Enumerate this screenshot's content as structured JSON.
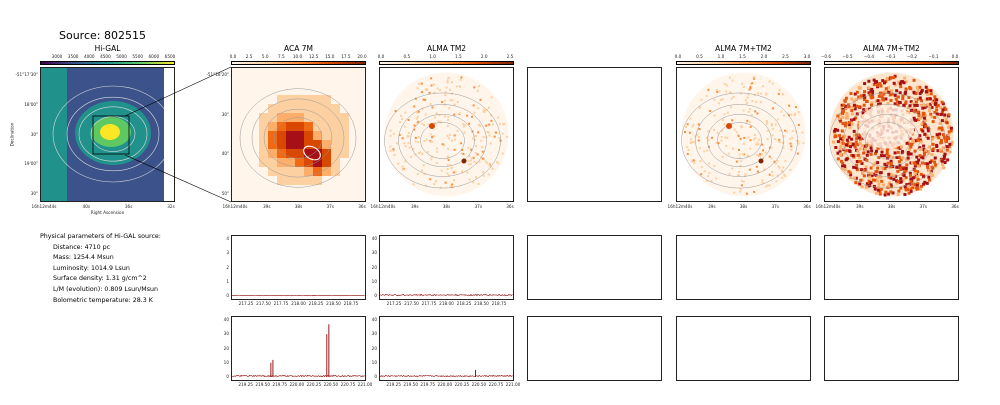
{
  "source_title": "Source: 802515",
  "colors": {
    "viridis_start": "#440154",
    "viridis_end": "#fde725",
    "orange": "#d94801",
    "spectrum": "#8b0000"
  },
  "maps": [
    {
      "id": "higal",
      "title": "Hi-GAL",
      "cb_ticks": [
        "3000",
        "3500",
        "4000",
        "4500",
        "5000",
        "5500",
        "6000",
        "6500"
      ],
      "cmap": "viridis",
      "xticks": [
        "16h12m44s",
        "40s",
        "36s",
        "32s"
      ],
      "yticks": [
        "-51°17'30\"",
        "18'00\"",
        "30\"",
        "19'00\"",
        "30\""
      ],
      "xlabel": "Right Ascension",
      "ylabel": "Declination"
    },
    {
      "id": "aca7m",
      "title": "ACA 7M",
      "cb_ticks": [
        "0.0",
        "2.5",
        "5.0",
        "7.5",
        "10.0",
        "12.5",
        "15.0",
        "17.5",
        "20.0"
      ],
      "cmap": "orange",
      "xticks": [
        "16h12m40s",
        "39s",
        "38s",
        "37s",
        "36s"
      ],
      "yticks": [
        "-51°18'20\"",
        "30\"",
        "40\"",
        "50\""
      ]
    },
    {
      "id": "almatm2",
      "title": "ALMA TM2",
      "cb_ticks": [
        "0.0",
        "0.5",
        "1.0",
        "1.5",
        "2.0",
        "2.5"
      ],
      "cmap": "orange",
      "xticks": [
        "16h12m40s",
        "39s",
        "38s",
        "37s",
        "36s"
      ]
    },
    {
      "id": "empty",
      "title": "",
      "cb_ticks": [],
      "cmap": "none",
      "xticks": []
    },
    {
      "id": "alma7mtm2",
      "title": "ALMA 7M+TM2",
      "cb_ticks": [
        "0.0",
        "0.5",
        "1.0",
        "1.5",
        "2.0",
        "2.5",
        "3.0"
      ],
      "cmap": "orange",
      "xticks": [
        "16h12m40s",
        "39s",
        "38s",
        "37s",
        "36s"
      ]
    },
    {
      "id": "alma7mtm2b",
      "title": "ALMA 7M+TM2",
      "cb_ticks": [
        "−0.6",
        "−0.5",
        "−0.4",
        "−0.3",
        "−0.2",
        "−0.1",
        "0.0"
      ],
      "cmap": "orange",
      "xticks": [
        "16h12m40s",
        "39s",
        "38s",
        "37s",
        "36s"
      ]
    }
  ],
  "params": {
    "heading": "Physical parameters of Hi-GAL source:",
    "lines": [
      "Distance: 4710 pc",
      "Mass: 1254.4 Msun",
      "Luminosity: 1014.9 Lsun",
      "Surface density: 1.31 g/cm^2",
      "L/M (evolution): 0.809 Lsun/Msun",
      "Bolometric temperature: 28.3 K"
    ]
  },
  "chart_data": [
    {
      "type": "line",
      "name": "row1-aca",
      "xticks": [
        "217.25",
        "217.50",
        "217.75",
        "218.00",
        "218.25",
        "218.50",
        "218.75"
      ],
      "xlim": [
        217.05,
        218.95
      ],
      "ylim": [
        0,
        40
      ],
      "yticks": [
        "0",
        "1",
        "2",
        "3",
        "4"
      ],
      "peaks": [
        {
          "x": 218.22,
          "y": 0.6
        }
      ],
      "noise": 0.08
    },
    {
      "type": "line",
      "name": "row1-tm2",
      "xticks": [
        "217.25",
        "217.50",
        "217.75",
        "218.00",
        "218.25",
        "218.50",
        "218.75"
      ],
      "xlim": [
        217.05,
        218.95
      ],
      "ylim": [
        0,
        40
      ],
      "yticks": [
        "0",
        "10",
        "20",
        "30",
        "40"
      ],
      "peaks": [],
      "noise": 0.8
    },
    {
      "type": "line",
      "name": "row2-aca",
      "xticks": [
        "219.25",
        "219.50",
        "219.75",
        "220.00",
        "220.25",
        "220.50",
        "220.75",
        "221.00"
      ],
      "xlim": [
        219.05,
        221.0
      ],
      "ylim": [
        0,
        40
      ],
      "yticks": [
        "0",
        "10",
        "20",
        "30",
        "40"
      ],
      "peaks": [
        {
          "x": 219.62,
          "y": 10
        },
        {
          "x": 219.65,
          "y": 12
        },
        {
          "x": 220.44,
          "y": 30
        },
        {
          "x": 220.47,
          "y": 37
        }
      ],
      "noise": 0.8
    },
    {
      "type": "line",
      "name": "row2-tm2",
      "xticks": [
        "219.25",
        "219.50",
        "219.75",
        "220.00",
        "220.25",
        "220.50",
        "220.75",
        "221.00"
      ],
      "xlim": [
        219.05,
        221.0
      ],
      "ylim": [
        0,
        40
      ],
      "yticks": [
        "0",
        "10",
        "20",
        "30",
        "40"
      ],
      "peaks": [
        {
          "x": 220.45,
          "y": 5
        }
      ],
      "noise": 0.8
    }
  ]
}
